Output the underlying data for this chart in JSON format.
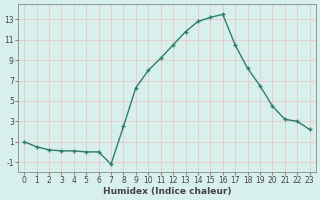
{
  "x": [
    0,
    1,
    2,
    3,
    4,
    5,
    6,
    7,
    8,
    9,
    10,
    11,
    12,
    13,
    14,
    15,
    16,
    17,
    18,
    19,
    20,
    21,
    22,
    23
  ],
  "y": [
    1.0,
    0.5,
    0.2,
    0.1,
    0.1,
    0.0,
    0.0,
    -1.2,
    2.5,
    6.3,
    8.0,
    9.2,
    10.5,
    11.8,
    12.8,
    13.2,
    13.5,
    10.5,
    8.2,
    6.5,
    4.5,
    3.2,
    3.0,
    2.2
  ],
  "line_color": "#2e7d6e",
  "marker": "+",
  "marker_size": 3.5,
  "linewidth": 1.0,
  "xlabel": "Humidex (Indice chaleur)",
  "xlim": [
    -0.5,
    23.5
  ],
  "ylim": [
    -2.0,
    14.5
  ],
  "yticks": [
    -1,
    1,
    3,
    5,
    7,
    9,
    11,
    13
  ],
  "xticks": [
    0,
    1,
    2,
    3,
    4,
    5,
    6,
    7,
    8,
    9,
    10,
    11,
    12,
    13,
    14,
    15,
    16,
    17,
    18,
    19,
    20,
    21,
    22,
    23
  ],
  "bg_color": "#d8f0ec",
  "grid_color": "#e8c8c8",
  "tick_color": "#444444",
  "xlabel_fontsize": 6.5,
  "tick_fontsize": 5.5,
  "spine_color": "#888888"
}
